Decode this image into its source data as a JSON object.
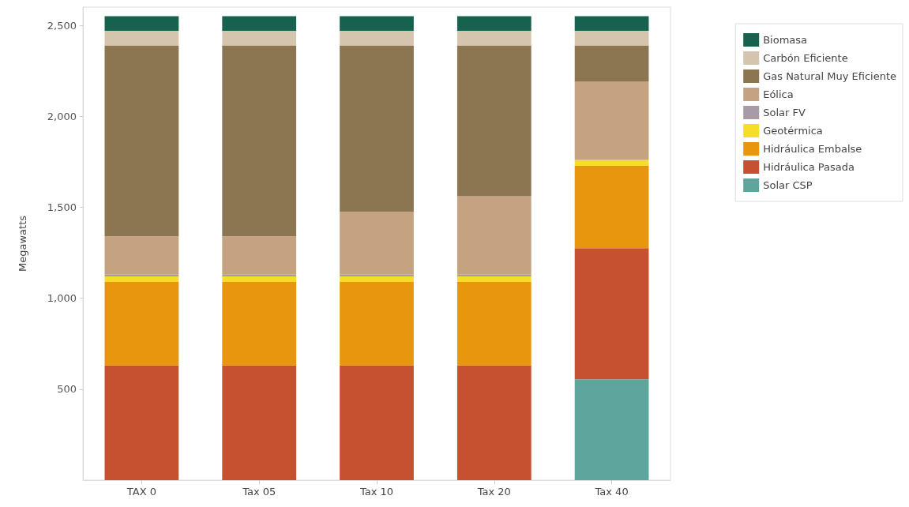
{
  "chart_data": {
    "type": "bar",
    "stacked": true,
    "ylabel": "Megawatts",
    "categories": [
      "TAX 0",
      "Tax 05",
      "Tax 10",
      "Tax 20",
      "Tax 40"
    ],
    "ylim": [
      0,
      2600
    ],
    "yticks": [
      500,
      {
        "value": 1000,
        "label": "1,000"
      },
      {
        "value": 1500,
        "label": "1,500"
      },
      {
        "value": 2000,
        "label": "2,000"
      },
      {
        "value": 2500,
        "label": "2,500"
      }
    ],
    "grid": false,
    "legend": "top right",
    "series": [
      {
        "name": "Solar CSP",
        "color": "#5ea59d",
        "values": [
          null,
          null,
          null,
          null,
          555
        ]
      },
      {
        "name": "Hidráulica Pasada",
        "color": "#c65131",
        "values": [
          630,
          630,
          630,
          630,
          720
        ]
      },
      {
        "name": "Hidráulica Embalse",
        "color": "#e7960e",
        "values": [
          460,
          460,
          460,
          460,
          455
        ]
      },
      {
        "name": "Geotérmica",
        "color": "#f5dd2a",
        "values": [
          30,
          30,
          30,
          30,
          30
        ]
      },
      {
        "name": "Solar FV",
        "color": "#a99aa8",
        "values": [
          10,
          10,
          10,
          10,
          null
        ]
      },
      {
        "name": "Eólica",
        "color": "#c6a380",
        "values": [
          210,
          210,
          345,
          430,
          430
        ]
      },
      {
        "name": "Gas Natural Muy Eficiente",
        "color": "#8c7551",
        "values": [
          1050,
          1050,
          915,
          830,
          200
        ]
      },
      {
        "name": "Carbón Eficiente",
        "color": "#d6c5ae",
        "values": [
          80,
          80,
          80,
          80,
          80
        ]
      },
      {
        "name": "Biomasa",
        "color": "#17624f",
        "values": [
          80,
          80,
          80,
          80,
          80
        ]
      }
    ]
  }
}
